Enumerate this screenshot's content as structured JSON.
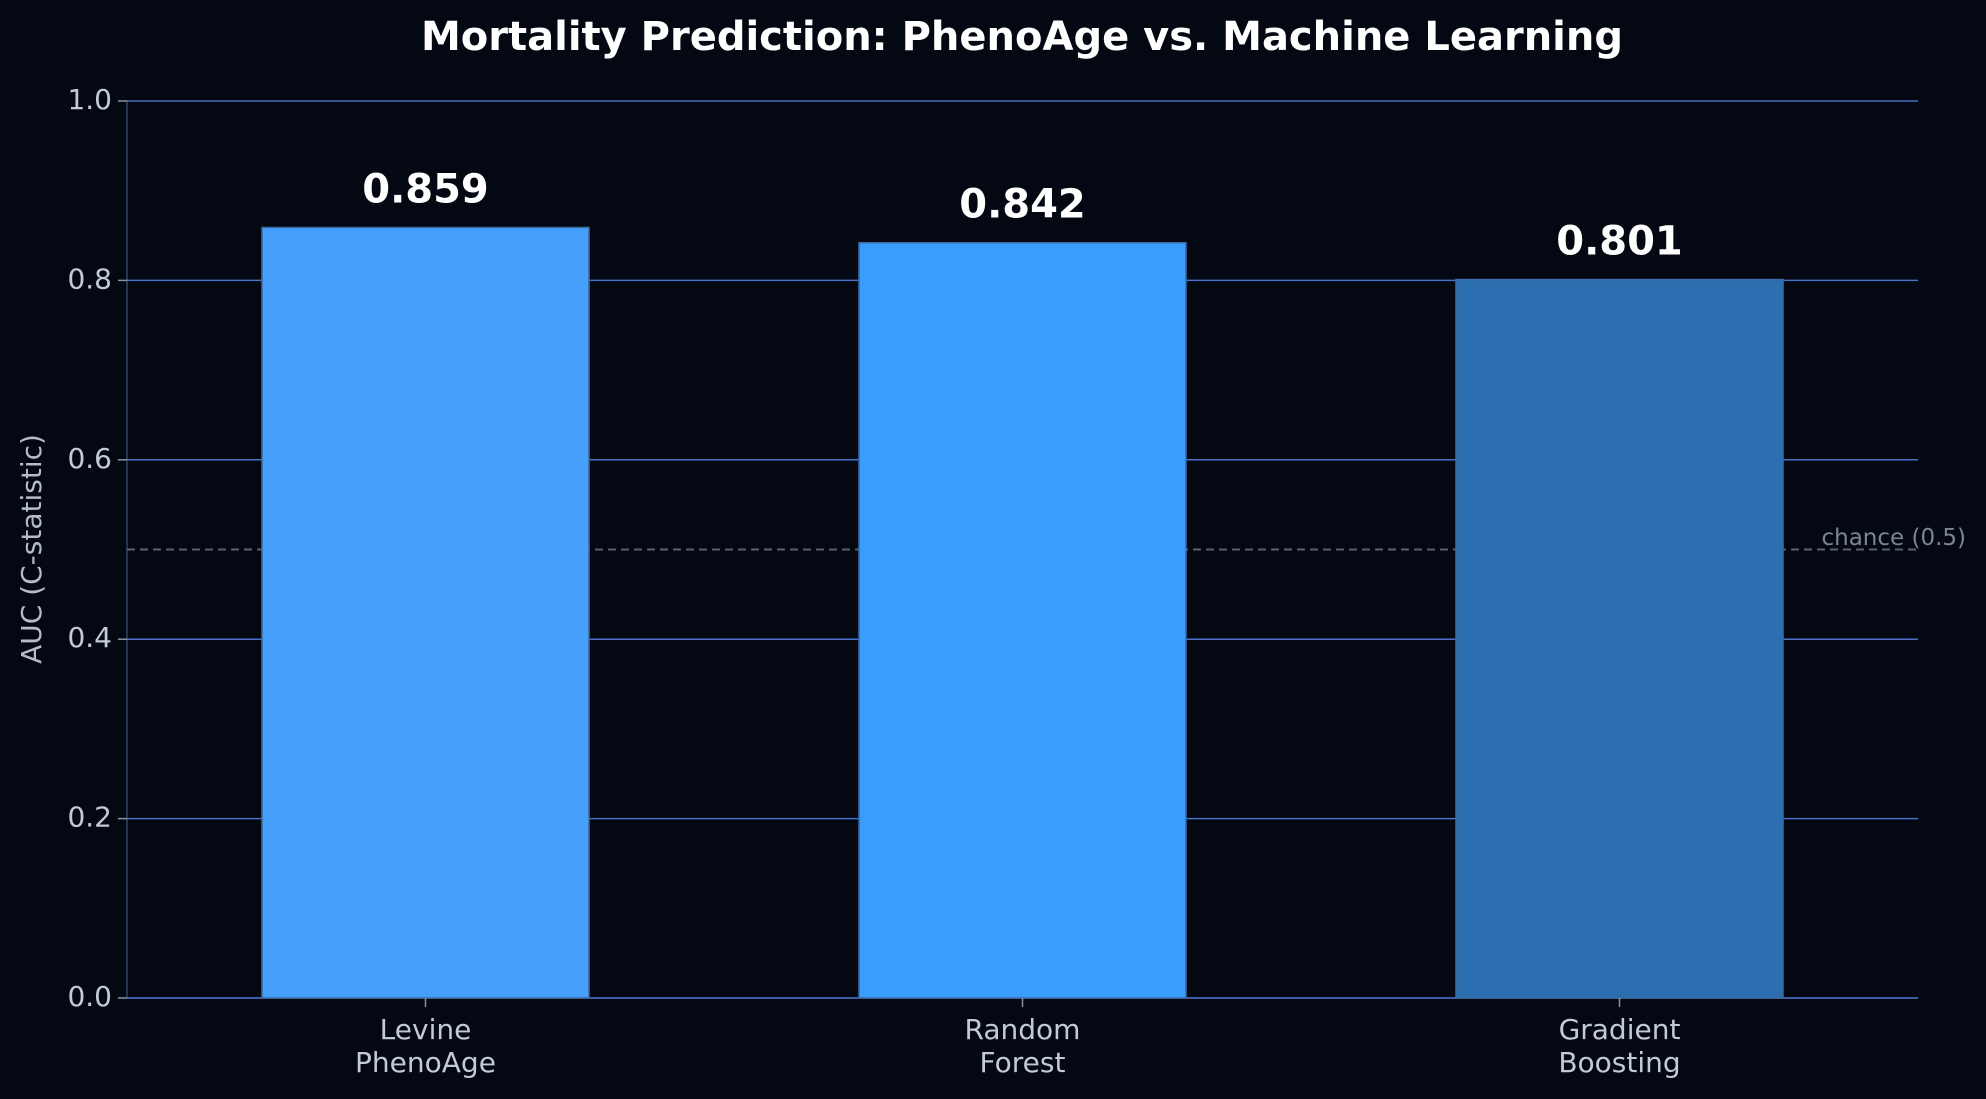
{
  "chart_data": {
    "type": "bar",
    "title": "Mortality Prediction: PhenoAge vs. Machine Learning",
    "y_label": "AUC (C-statistic)",
    "categories": [
      "Levine\nPhenoAge",
      "Random\nForest",
      "Gradient\nBoosting"
    ],
    "values": [
      0.859,
      0.842,
      0.801
    ],
    "colors": [
      "#479ffc",
      "#399dfe",
      "#2b6fb0"
    ],
    "ylim": [
      0,
      1
    ],
    "yticks": [
      {
        "value": 0,
        "label": "0.0"
      },
      0.2,
      0.4,
      0.6,
      0.8,
      {
        "value": 1,
        "label": "1.0"
      }
    ],
    "grid": true,
    "reference_line": {
      "value": 0.5,
      "label": "chance (0.5)"
    }
  }
}
